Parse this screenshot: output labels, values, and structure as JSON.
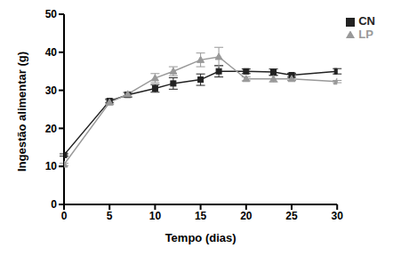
{
  "chart_data": {
    "type": "line",
    "x_label": "Tempo (dias)",
    "y_label": "Ingestão alimentar (g)",
    "x": [
      0,
      5,
      7,
      10,
      12,
      15,
      17,
      20,
      23,
      25,
      30
    ],
    "series": [
      {
        "name": "CN",
        "color": "#222222",
        "marker": "square",
        "values": [
          13,
          27.2,
          28.8,
          30.5,
          31.8,
          32.8,
          35,
          35,
          34.8,
          34,
          35
        ],
        "errors": [
          0.3,
          0.5,
          0.6,
          1,
          1.5,
          1.5,
          1.5,
          0.6,
          0.8,
          0.5,
          0.7
        ]
      },
      {
        "name": "LP",
        "color": "#999999",
        "marker": "triangle",
        "values": [
          10.5,
          26.8,
          29,
          33.2,
          35,
          38,
          38.8,
          33,
          33,
          33,
          32.3
        ],
        "errors": [
          0.3,
          0.5,
          0.6,
          1.2,
          1.2,
          1.8,
          2.5,
          0.5,
          0.8,
          0.4,
          0.3
        ]
      }
    ],
    "xlim": [
      0,
      30
    ],
    "xticks": [
      0,
      5,
      10,
      15,
      20,
      25,
      30
    ],
    "ylim": [
      0,
      50
    ],
    "yticks": [
      0,
      10,
      20,
      30,
      40,
      50
    ],
    "grid": false,
    "legend": "top right"
  }
}
